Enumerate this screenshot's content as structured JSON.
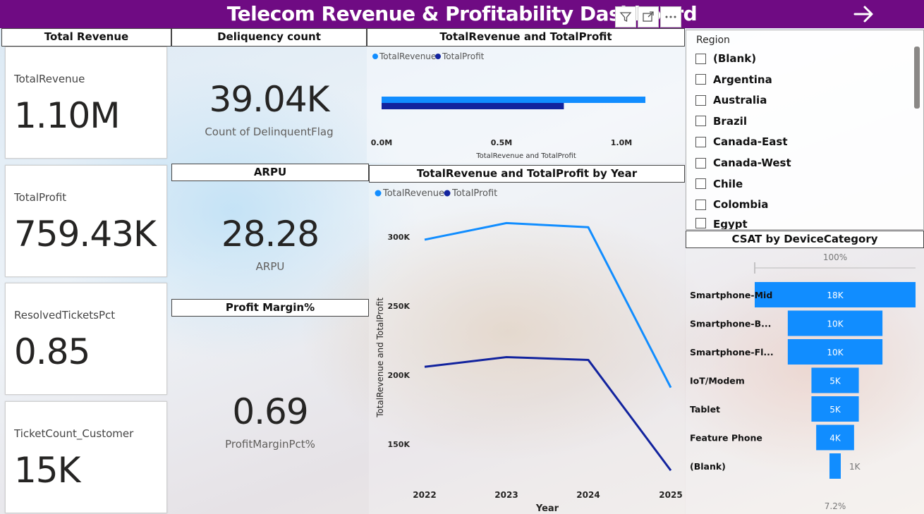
{
  "title": "Telecom Revenue & Profitability Dashboard",
  "icons": {
    "filter": "filter-icon",
    "focus": "focus-mode-icon",
    "more": "more-options-icon",
    "nav": "arrow-right-icon"
  },
  "colors": {
    "header": "#6f0b83",
    "revenue": "#118dff",
    "profit": "#12239e"
  },
  "total_revenue_section": {
    "title": "Total Revenue",
    "cards": [
      {
        "label": "TotalRevenue",
        "value": "1.10M"
      },
      {
        "label": "TotalProfit",
        "value": "759.43K"
      },
      {
        "label": "ResolvedTicketsPct",
        "value": "0.85"
      },
      {
        "label": "TicketCount_Customer",
        "value": "15K"
      }
    ]
  },
  "delinquency": {
    "title": "Deliquency count",
    "value": "39.04K",
    "label": "Count of DelinquentFlag"
  },
  "arpu": {
    "title": "ARPU",
    "value": "28.28",
    "label": "ARPU"
  },
  "profit_margin": {
    "title": "Profit Margin%",
    "value": "0.69",
    "label": "ProfitMarginPct%"
  },
  "region_slicer": {
    "title": "Region",
    "items": [
      "(Blank)",
      "Argentina",
      "Australia",
      "Brazil",
      "Canada-East",
      "Canada-West",
      "Chile",
      "Colombia",
      "Egypt"
    ]
  },
  "chart_data": [
    {
      "type": "bar",
      "orientation": "horizontal",
      "title": "TotalRevenue and TotalProfit",
      "legend": [
        "TotalRevenue",
        "TotalProfit"
      ],
      "xlabel": "TotalRevenue and TotalProfit",
      "xticks": [
        "0.0M",
        "0.5M",
        "1.0M"
      ],
      "xlim": [
        0,
        1.16
      ],
      "series": [
        {
          "name": "TotalRevenue",
          "values": [
            1.1
          ]
        },
        {
          "name": "TotalProfit",
          "values": [
            0.76
          ]
        }
      ]
    },
    {
      "type": "line",
      "title": "TotalRevenue and TotalProfit by Year",
      "legend": [
        "TotalRevenue",
        "TotalProfit"
      ],
      "xlabel": "Year",
      "ylabel": "TotalRevenue and TotalProfit",
      "categories": [
        "2022",
        "2023",
        "2024",
        "2025"
      ],
      "yticks": [
        "150K",
        "200K",
        "250K",
        "300K"
      ],
      "ylim": [
        130000,
        320000
      ],
      "series": [
        {
          "name": "TotalRevenue",
          "values": [
            298000,
            310000,
            307000,
            191000
          ]
        },
        {
          "name": "TotalProfit",
          "values": [
            206000,
            213000,
            211000,
            131000
          ]
        }
      ]
    },
    {
      "type": "bar",
      "subtype": "funnel",
      "title": "CSAT by DeviceCategory",
      "top_label": "100%",
      "bottom_label": "7.2%",
      "categories": [
        "Smartphone-Mid",
        "Smartphone-B...",
        "Smartphone-Fl...",
        "IoT/Modem",
        "Tablet",
        "Feature Phone",
        "(Blank)"
      ],
      "values": [
        18000,
        10000,
        10000,
        5000,
        5000,
        4000,
        1000
      ],
      "value_labels": [
        "18K",
        "10K",
        "10K",
        "5K",
        "5K",
        "4K",
        "1K"
      ]
    }
  ]
}
